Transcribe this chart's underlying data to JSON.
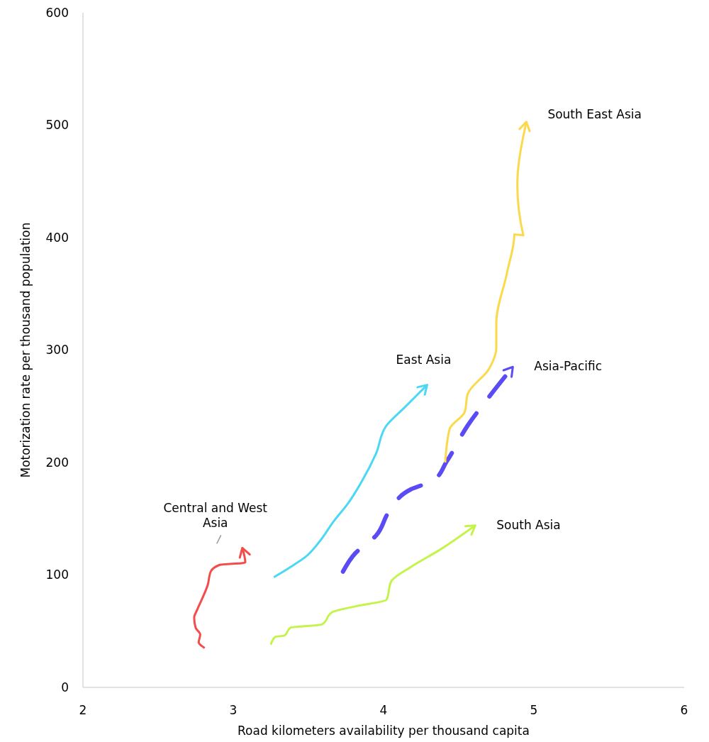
{
  "chart_data": {
    "type": "line",
    "xlabel": "Road kilometers availability per thousand capita",
    "ylabel": "Motorization rate per thousand population",
    "xlim": [
      2,
      6
    ],
    "xticks": [
      2,
      3,
      4,
      5,
      6
    ],
    "ylim": [
      0,
      600
    ],
    "yticks": [
      0,
      100,
      200,
      300,
      400,
      500,
      600
    ],
    "grid": false,
    "legend": "right",
    "marker": "none",
    "series": [
      {
        "name": "Central and West Asia",
        "color": "#f44b4b",
        "line_style": "solid",
        "x": [
          2.81,
          2.77,
          2.78,
          2.75,
          2.74,
          2.76,
          2.79,
          2.83,
          2.85,
          2.91,
          3.08,
          3.06
        ],
        "values": [
          35,
          40,
          47,
          53,
          62,
          69,
          78,
          91,
          103,
          109,
          111,
          124
        ]
      },
      {
        "name": "East Asia",
        "color": "#4bd8f4",
        "line_style": "solid",
        "x": [
          3.27,
          3.38,
          3.48,
          3.57,
          3.67,
          3.76,
          3.85,
          3.95,
          4.02,
          4.14,
          4.29
        ],
        "values": [
          98,
          107,
          116,
          129,
          148,
          163,
          182,
          208,
          233,
          249,
          269
        ]
      },
      {
        "name": "Asia-Pacific",
        "color": "#5b4bf4",
        "line_style": "dashed",
        "x": [
          3.73,
          3.81,
          3.95,
          4.04,
          4.18,
          4.33,
          4.42,
          4.56,
          4.7,
          4.86
        ],
        "values": [
          103,
          119,
          135,
          157,
          176,
          184,
          201,
          233,
          258,
          285
        ]
      },
      {
        "name": "South East Asia",
        "color": "#fcd94b",
        "line_style": "solid",
        "x": [
          4.41,
          4.44,
          4.54,
          4.56,
          4.7,
          4.75,
          4.75,
          4.82,
          4.87,
          4.93,
          4.89,
          4.95
        ],
        "values": [
          200,
          230,
          245,
          261,
          283,
          302,
          324,
          368,
          403,
          402,
          447,
          503
        ]
      },
      {
        "name": "South Asia",
        "color": "#c4f44b",
        "line_style": "solid",
        "x": [
          3.25,
          3.28,
          3.34,
          3.38,
          3.59,
          3.66,
          3.81,
          4.02,
          4.05,
          4.18,
          4.37,
          4.61
        ],
        "values": [
          38,
          45,
          46,
          53,
          56,
          67,
          72,
          78,
          94,
          107,
          122,
          144
        ]
      }
    ]
  }
}
